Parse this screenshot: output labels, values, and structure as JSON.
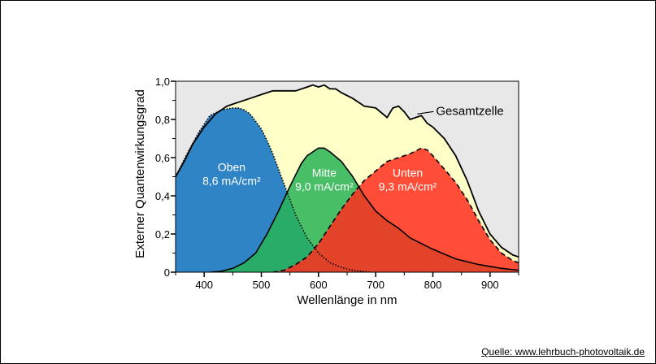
{
  "source_text": "Quelle: www.lehrbuch-photovoltaik.de",
  "chart_data": {
    "type": "area",
    "title": "",
    "xlabel": "Wellenlänge  in nm",
    "ylabel": "Externer  Quantenwirkungsgrad",
    "xlim": [
      350,
      950
    ],
    "ylim": [
      0,
      1.0
    ],
    "x_ticks": [
      400,
      500,
      600,
      700,
      800,
      900
    ],
    "y_ticks": [
      "0",
      "0,2",
      "0,4",
      "0,6",
      "0,8",
      "1,0"
    ],
    "y_tick_values": [
      0,
      0.2,
      0.4,
      0.6,
      0.8,
      1.0
    ],
    "grid": false,
    "background_color": "#e8e8e8",
    "annotations": [
      {
        "text": "Gesamtzelle",
        "points_to_x": 770,
        "points_to_y": 0.82
      }
    ],
    "series": [
      {
        "name": "Gesamtzelle",
        "label": "",
        "fill": "#ffffc8",
        "stroke_style": "solid",
        "x": [
          350,
          365,
          380,
          400,
          420,
          440,
          460,
          480,
          500,
          520,
          540,
          560,
          580,
          590,
          600,
          610,
          620,
          630,
          640,
          660,
          680,
          700,
          720,
          730,
          740,
          750,
          760,
          770,
          780,
          790,
          800,
          820,
          840,
          860,
          880,
          900,
          920,
          940,
          950
        ],
        "y": [
          0.5,
          0.58,
          0.67,
          0.76,
          0.83,
          0.87,
          0.89,
          0.91,
          0.93,
          0.95,
          0.95,
          0.95,
          0.97,
          0.98,
          0.97,
          0.98,
          0.96,
          0.96,
          0.94,
          0.91,
          0.87,
          0.86,
          0.81,
          0.86,
          0.87,
          0.84,
          0.8,
          0.81,
          0.82,
          0.78,
          0.76,
          0.7,
          0.61,
          0.48,
          0.32,
          0.2,
          0.13,
          0.09,
          0.08
        ]
      },
      {
        "name": "Oben",
        "label": "Oben\n8,6 mA/cm²",
        "fill": "#0a6fc4",
        "stroke_style": "dotted",
        "x": [
          350,
          370,
          390,
          410,
          430,
          450,
          460,
          470,
          480,
          490,
          500,
          510,
          520,
          530,
          540,
          550,
          560,
          570,
          580,
          600,
          620,
          640,
          660,
          680,
          690
        ],
        "y": [
          0.5,
          0.62,
          0.73,
          0.82,
          0.85,
          0.86,
          0.86,
          0.85,
          0.83,
          0.79,
          0.75,
          0.69,
          0.62,
          0.54,
          0.46,
          0.38,
          0.3,
          0.24,
          0.18,
          0.1,
          0.05,
          0.025,
          0.01,
          0.003,
          0.0
        ]
      },
      {
        "name": "Mitte",
        "label": "Mitte\n9,0 mA/cm²",
        "fill": "#28b356",
        "stroke_style": "solid",
        "x": [
          410,
          430,
          450,
          470,
          490,
          510,
          530,
          550,
          570,
          580,
          590,
          600,
          610,
          620,
          640,
          660,
          680,
          700,
          720,
          740,
          760,
          780,
          800,
          840,
          880,
          920,
          950
        ],
        "y": [
          0.0,
          0.005,
          0.02,
          0.05,
          0.1,
          0.2,
          0.32,
          0.45,
          0.57,
          0.61,
          0.63,
          0.65,
          0.65,
          0.63,
          0.58,
          0.5,
          0.4,
          0.32,
          0.27,
          0.23,
          0.18,
          0.15,
          0.12,
          0.07,
          0.04,
          0.02,
          0.01
        ]
      },
      {
        "name": "Unten",
        "label": "Unten\n9,3 mA/cm²",
        "fill": "#ff2e1f",
        "stroke_style": "dashed",
        "x": [
          520,
          540,
          560,
          580,
          600,
          620,
          640,
          660,
          680,
          700,
          720,
          740,
          760,
          780,
          790,
          800,
          820,
          840,
          860,
          880,
          900,
          920,
          940,
          950
        ],
        "y": [
          0.0,
          0.01,
          0.04,
          0.08,
          0.15,
          0.24,
          0.33,
          0.41,
          0.48,
          0.53,
          0.58,
          0.6,
          0.62,
          0.65,
          0.64,
          0.61,
          0.54,
          0.47,
          0.38,
          0.27,
          0.17,
          0.1,
          0.06,
          0.05
        ]
      }
    ]
  }
}
